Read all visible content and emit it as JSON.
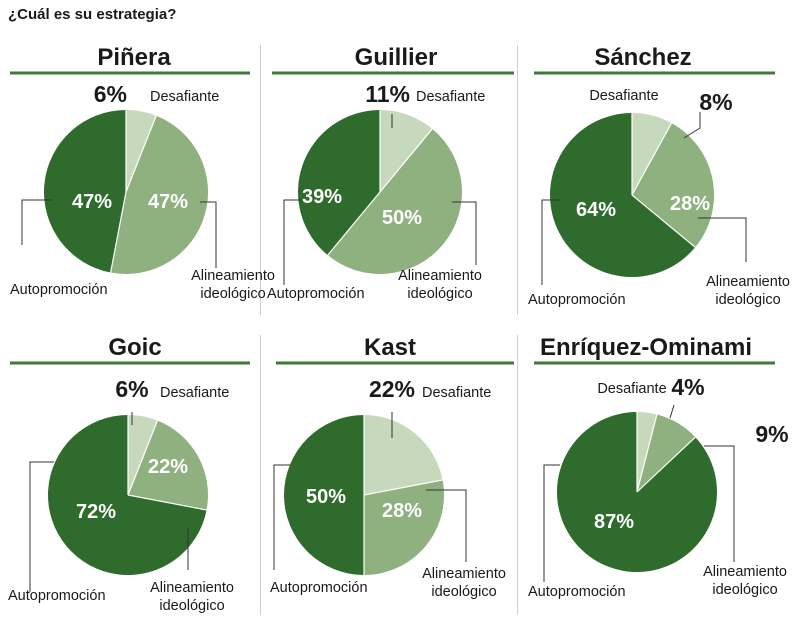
{
  "page": {
    "title": "¿Cuál es su estrategia?"
  },
  "labels": {
    "challenger": "Desafiante",
    "ideological": [
      "Alineamiento",
      "ideológico"
    ],
    "self": "Autopromoción"
  },
  "colors": {
    "self": "#2e6b2c",
    "ideological": "#8fb07f",
    "challenger": "#c7d9bd",
    "rule": "#3d7a35"
  },
  "chart_data": [
    {
      "type": "pie",
      "title": "Piñera",
      "categories": [
        "Desafiante",
        "Alineamiento ideológico",
        "Autopromoción"
      ],
      "values": [
        6,
        47,
        47
      ],
      "value_labels": [
        "6%",
        "47%",
        "47%"
      ]
    },
    {
      "type": "pie",
      "title": "Guillier",
      "categories": [
        "Desafiante",
        "Alineamiento ideológico",
        "Autopromoción"
      ],
      "values": [
        11,
        50,
        39
      ],
      "value_labels": [
        "11%",
        "50%",
        "39%"
      ]
    },
    {
      "type": "pie",
      "title": "Sánchez",
      "categories": [
        "Desafiante",
        "Alineamiento ideológico",
        "Autopromoción"
      ],
      "values": [
        8,
        28,
        64
      ],
      "value_labels": [
        "8%",
        "28%",
        "64%"
      ]
    },
    {
      "type": "pie",
      "title": "Goic",
      "categories": [
        "Desafiante",
        "Alineamiento ideológico",
        "Autopromoción"
      ],
      "values": [
        6,
        22,
        72
      ],
      "value_labels": [
        "6%",
        "22%",
        "72%"
      ]
    },
    {
      "type": "pie",
      "title": "Kast",
      "categories": [
        "Desafiante",
        "Alineamiento ideológico",
        "Autopromoción"
      ],
      "values": [
        22,
        28,
        50
      ],
      "value_labels": [
        "22%",
        "28%",
        "50%"
      ]
    },
    {
      "type": "pie",
      "title": "Enríquez-Ominami",
      "categories": [
        "Desafiante",
        "Alineamiento ideológico",
        "Autopromoción"
      ],
      "values": [
        4,
        9,
        87
      ],
      "value_labels": [
        "4%",
        "9%",
        "87%"
      ]
    }
  ]
}
